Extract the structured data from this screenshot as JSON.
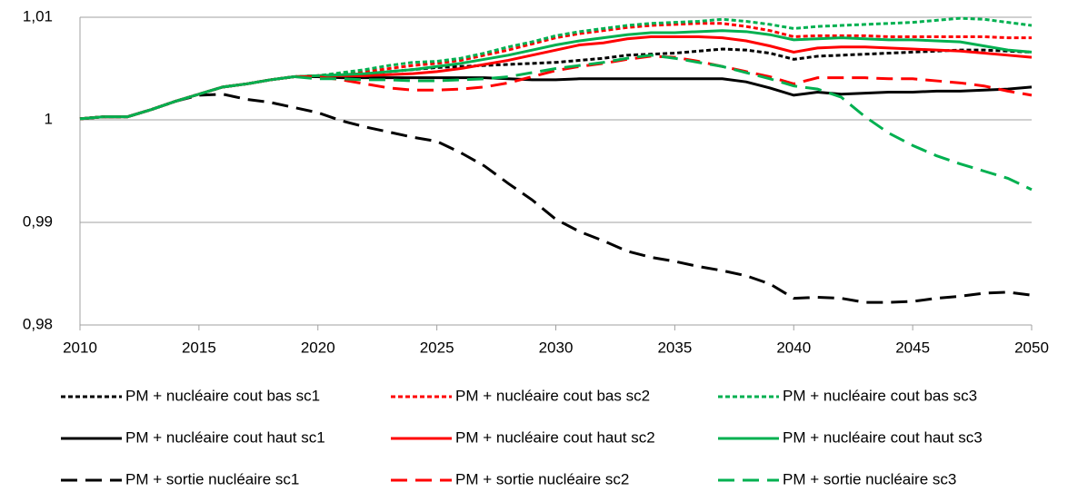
{
  "chart_data": {
    "type": "line",
    "x": [
      2010,
      2011,
      2012,
      2013,
      2014,
      2015,
      2016,
      2017,
      2018,
      2019,
      2020,
      2021,
      2022,
      2023,
      2024,
      2025,
      2026,
      2027,
      2028,
      2029,
      2030,
      2031,
      2032,
      2033,
      2034,
      2035,
      2036,
      2037,
      2038,
      2039,
      2040,
      2041,
      2042,
      2043,
      2044,
      2045,
      2046,
      2047,
      2048,
      2049,
      2050
    ],
    "xlim": [
      2010,
      2050
    ],
    "xticks": [
      2010,
      2015,
      2020,
      2025,
      2030,
      2035,
      2040,
      2045,
      2050
    ],
    "ylim": [
      0.98,
      1.01
    ],
    "yticks": [
      {
        "value": 0.98,
        "label": "0,98"
      },
      {
        "value": 0.99,
        "label": "0,99"
      },
      1,
      {
        "value": 1.01,
        "label": "1,01"
      }
    ],
    "grid": true,
    "legend": "bottom",
    "series": [
      {
        "name": "PM + nucléaire cout bas sc1",
        "color": "#000000",
        "dash": "dotted",
        "values": [
          1.0001,
          1.0003,
          1.0003,
          1.001,
          1.0018,
          1.0025,
          1.0032,
          1.0035,
          1.0039,
          1.0042,
          1.0043,
          1.0044,
          1.0045,
          1.0047,
          1.0049,
          1.0051,
          1.0052,
          1.0053,
          1.0054,
          1.0055,
          1.0056,
          1.0058,
          1.006,
          1.0063,
          1.0064,
          1.0065,
          1.0067,
          1.0069,
          1.0068,
          1.0065,
          1.0059,
          1.0062,
          1.0063,
          1.0064,
          1.0065,
          1.0066,
          1.0067,
          1.0068,
          1.0068,
          1.0067,
          1.0066
        ]
      },
      {
        "name": "PM + nucléaire cout bas sc2",
        "color": "#ff0000",
        "dash": "dotted",
        "values": [
          1.0001,
          1.0003,
          1.0003,
          1.001,
          1.0018,
          1.0025,
          1.0032,
          1.0035,
          1.0039,
          1.0042,
          1.0043,
          1.0045,
          1.0047,
          1.005,
          1.0053,
          1.0055,
          1.0058,
          1.0063,
          1.0068,
          1.0074,
          1.008,
          1.0084,
          1.0087,
          1.009,
          1.0092,
          1.0093,
          1.0094,
          1.0094,
          1.0091,
          1.0087,
          1.0081,
          1.0082,
          1.0082,
          1.0082,
          1.0081,
          1.0081,
          1.0081,
          1.0081,
          1.0081,
          1.008,
          1.008
        ]
      },
      {
        "name": "PM + nucléaire cout bas sc3",
        "color": "#00b050",
        "dash": "dotted",
        "values": [
          1.0001,
          1.0003,
          1.0003,
          1.001,
          1.0018,
          1.0025,
          1.0032,
          1.0035,
          1.0039,
          1.0042,
          1.0043,
          1.0046,
          1.0049,
          1.0053,
          1.0056,
          1.0057,
          1.006,
          1.0065,
          1.0071,
          1.0076,
          1.0082,
          1.0086,
          1.0089,
          1.0092,
          1.0094,
          1.0095,
          1.0096,
          1.0098,
          1.0096,
          1.0093,
          1.0089,
          1.0091,
          1.0092,
          1.0093,
          1.0094,
          1.0095,
          1.0097,
          1.0099,
          1.0098,
          1.0095,
          1.0092
        ]
      },
      {
        "name": "PM + nucléaire cout haut sc1",
        "color": "#000000",
        "dash": "solid",
        "values": [
          1.0001,
          1.0003,
          1.0003,
          1.001,
          1.0018,
          1.0025,
          1.0032,
          1.0035,
          1.0039,
          1.0042,
          1.0042,
          1.0041,
          1.0041,
          1.0041,
          1.0041,
          1.0041,
          1.0041,
          1.0041,
          1.004,
          1.0039,
          1.0039,
          1.004,
          1.004,
          1.004,
          1.004,
          1.004,
          1.004,
          1.004,
          1.0037,
          1.0031,
          1.0024,
          1.0027,
          1.0025,
          1.0026,
          1.0027,
          1.0027,
          1.0028,
          1.0028,
          1.0029,
          1.003,
          1.0032
        ]
      },
      {
        "name": "PM + nucléaire cout haut sc2",
        "color": "#ff0000",
        "dash": "solid",
        "values": [
          1.0001,
          1.0003,
          1.0003,
          1.001,
          1.0018,
          1.0025,
          1.0032,
          1.0035,
          1.0039,
          1.0042,
          1.0043,
          1.0043,
          1.0043,
          1.0044,
          1.0045,
          1.0047,
          1.005,
          1.0054,
          1.0058,
          1.0063,
          1.0068,
          1.0073,
          1.0075,
          1.0079,
          1.0081,
          1.0081,
          1.0081,
          1.008,
          1.0077,
          1.0072,
          1.0066,
          1.007,
          1.0071,
          1.0071,
          1.007,
          1.0069,
          1.0068,
          1.0067,
          1.0065,
          1.0063,
          1.0061
        ]
      },
      {
        "name": "PM + nucléaire cout haut sc3",
        "color": "#00b050",
        "dash": "solid",
        "values": [
          1.0001,
          1.0003,
          1.0003,
          1.001,
          1.0018,
          1.0025,
          1.0032,
          1.0035,
          1.0039,
          1.0042,
          1.0043,
          1.0044,
          1.0045,
          1.0047,
          1.0049,
          1.0052,
          1.0055,
          1.0059,
          1.0063,
          1.0068,
          1.0073,
          1.0077,
          1.008,
          1.0083,
          1.0085,
          1.0085,
          1.0086,
          1.0087,
          1.0086,
          1.0083,
          1.0078,
          1.0079,
          1.008,
          1.0079,
          1.0078,
          1.0078,
          1.0077,
          1.0076,
          1.0072,
          1.0068,
          1.0066
        ]
      },
      {
        "name": "PM + sortie nucléaire sc1",
        "color": "#000000",
        "dash": "dashed",
        "values": [
          1.0001,
          1.0003,
          1.0003,
          1.001,
          1.0018,
          1.0024,
          1.0025,
          1.002,
          1.0017,
          1.0012,
          1.0007,
          0.9999,
          0.9993,
          0.9988,
          0.9983,
          0.9979,
          0.9968,
          0.9955,
          0.9938,
          0.9922,
          0.9903,
          0.9891,
          0.9882,
          0.9872,
          0.9866,
          0.9862,
          0.9857,
          0.9853,
          0.9848,
          0.984,
          0.9826,
          0.9827,
          0.9826,
          0.9822,
          0.9822,
          0.9823,
          0.9826,
          0.9828,
          0.9831,
          0.9832,
          0.9829
        ]
      },
      {
        "name": "PM + sortie nucléaire sc2",
        "color": "#ff0000",
        "dash": "dashed",
        "values": [
          1.0001,
          1.0003,
          1.0003,
          1.001,
          1.0018,
          1.0025,
          1.0032,
          1.0035,
          1.0039,
          1.0042,
          1.0042,
          1.0039,
          1.0035,
          1.0031,
          1.0029,
          1.0029,
          1.003,
          1.0032,
          1.0036,
          1.0042,
          1.0048,
          1.0052,
          1.0055,
          1.0059,
          1.0062,
          1.0061,
          1.0057,
          1.0052,
          1.0047,
          1.0042,
          1.0035,
          1.0041,
          1.0041,
          1.0041,
          1.004,
          1.004,
          1.0038,
          1.0036,
          1.0033,
          1.0028,
          1.0024
        ]
      },
      {
        "name": "PM + sortie nucléaire sc3",
        "color": "#00b050",
        "dash": "dashed",
        "values": [
          1.0001,
          1.0003,
          1.0003,
          1.001,
          1.0018,
          1.0025,
          1.0032,
          1.0035,
          1.0039,
          1.0042,
          1.004,
          1.004,
          1.0039,
          1.0039,
          1.0038,
          1.0038,
          1.0039,
          1.004,
          1.0042,
          1.0046,
          1.005,
          1.0053,
          1.0056,
          1.006,
          1.0063,
          1.006,
          1.0056,
          1.0052,
          1.0046,
          1.004,
          1.0033,
          1.003,
          1.0022,
          1.0003,
          0.9987,
          0.9975,
          0.9965,
          0.9957,
          0.995,
          0.9943,
          0.9932
        ]
      }
    ]
  }
}
